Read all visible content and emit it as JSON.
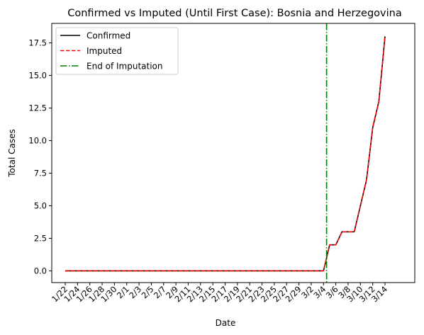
{
  "chart_data": {
    "type": "line",
    "title": "Confirmed vs Imputed (Until First Case): Bosnia and Herzegovina",
    "xlabel": "Date",
    "ylabel": "Total Cases",
    "ylim": [
      -0.9,
      19.0
    ],
    "yticks": [
      0.0,
      2.5,
      5.0,
      7.5,
      10.0,
      12.5,
      15.0,
      17.5
    ],
    "ytick_labels": [
      "0.0",
      "2.5",
      "5.0",
      "7.5",
      "10.0",
      "12.5",
      "15.0",
      "17.5"
    ],
    "x": [
      "1/22",
      "1/23",
      "1/24",
      "1/25",
      "1/26",
      "1/27",
      "1/28",
      "1/29",
      "1/30",
      "1/31",
      "2/1",
      "2/2",
      "2/3",
      "2/4",
      "2/5",
      "2/6",
      "2/7",
      "2/8",
      "2/9",
      "2/10",
      "2/11",
      "2/12",
      "2/13",
      "2/14",
      "2/15",
      "2/16",
      "2/17",
      "2/18",
      "2/19",
      "2/20",
      "2/21",
      "2/22",
      "2/23",
      "2/24",
      "2/25",
      "2/26",
      "2/27",
      "2/28",
      "2/29",
      "3/1",
      "3/2",
      "3/3",
      "3/4",
      "3/5",
      "3/6",
      "3/7",
      "3/8",
      "3/9",
      "3/10",
      "3/11",
      "3/12",
      "3/13",
      "3/14"
    ],
    "xtick_labels": [
      "1/22",
      "1/24",
      "1/26",
      "1/28",
      "1/30",
      "2/1",
      "2/3",
      "2/5",
      "2/7",
      "2/9",
      "2/11",
      "2/13",
      "2/15",
      "2/17",
      "2/19",
      "2/21",
      "2/23",
      "2/25",
      "2/27",
      "2/29",
      "3/2",
      "3/4",
      "3/6",
      "3/8",
      "3/10",
      "3/12",
      "3/14"
    ],
    "series": [
      {
        "name": "Confirmed",
        "color": "#000000",
        "style": "solid",
        "values": [
          0,
          0,
          0,
          0,
          0,
          0,
          0,
          0,
          0,
          0,
          0,
          0,
          0,
          0,
          0,
          0,
          0,
          0,
          0,
          0,
          0,
          0,
          0,
          0,
          0,
          0,
          0,
          0,
          0,
          0,
          0,
          0,
          0,
          0,
          0,
          0,
          0,
          0,
          0,
          0,
          0,
          0,
          0,
          2,
          2,
          3,
          3,
          3,
          5,
          7,
          11,
          13,
          18
        ]
      },
      {
        "name": "Imputed",
        "color": "#ff0000",
        "style": "dashed",
        "values": [
          0,
          0,
          0,
          0,
          0,
          0,
          0,
          0,
          0,
          0,
          0,
          0,
          0,
          0,
          0,
          0,
          0,
          0,
          0,
          0,
          0,
          0,
          0,
          0,
          0,
          0,
          0,
          0,
          0,
          0,
          0,
          0,
          0,
          0,
          0,
          0,
          0,
          0,
          0,
          0,
          0,
          0,
          0,
          2,
          2,
          3,
          3,
          3,
          5,
          7,
          11,
          13,
          18
        ]
      }
    ],
    "vline": {
      "name": "End of Imputation",
      "x": 42.5,
      "color": "#008000",
      "style": "dashdot"
    },
    "legend_position": "top-left",
    "grid": false
  }
}
